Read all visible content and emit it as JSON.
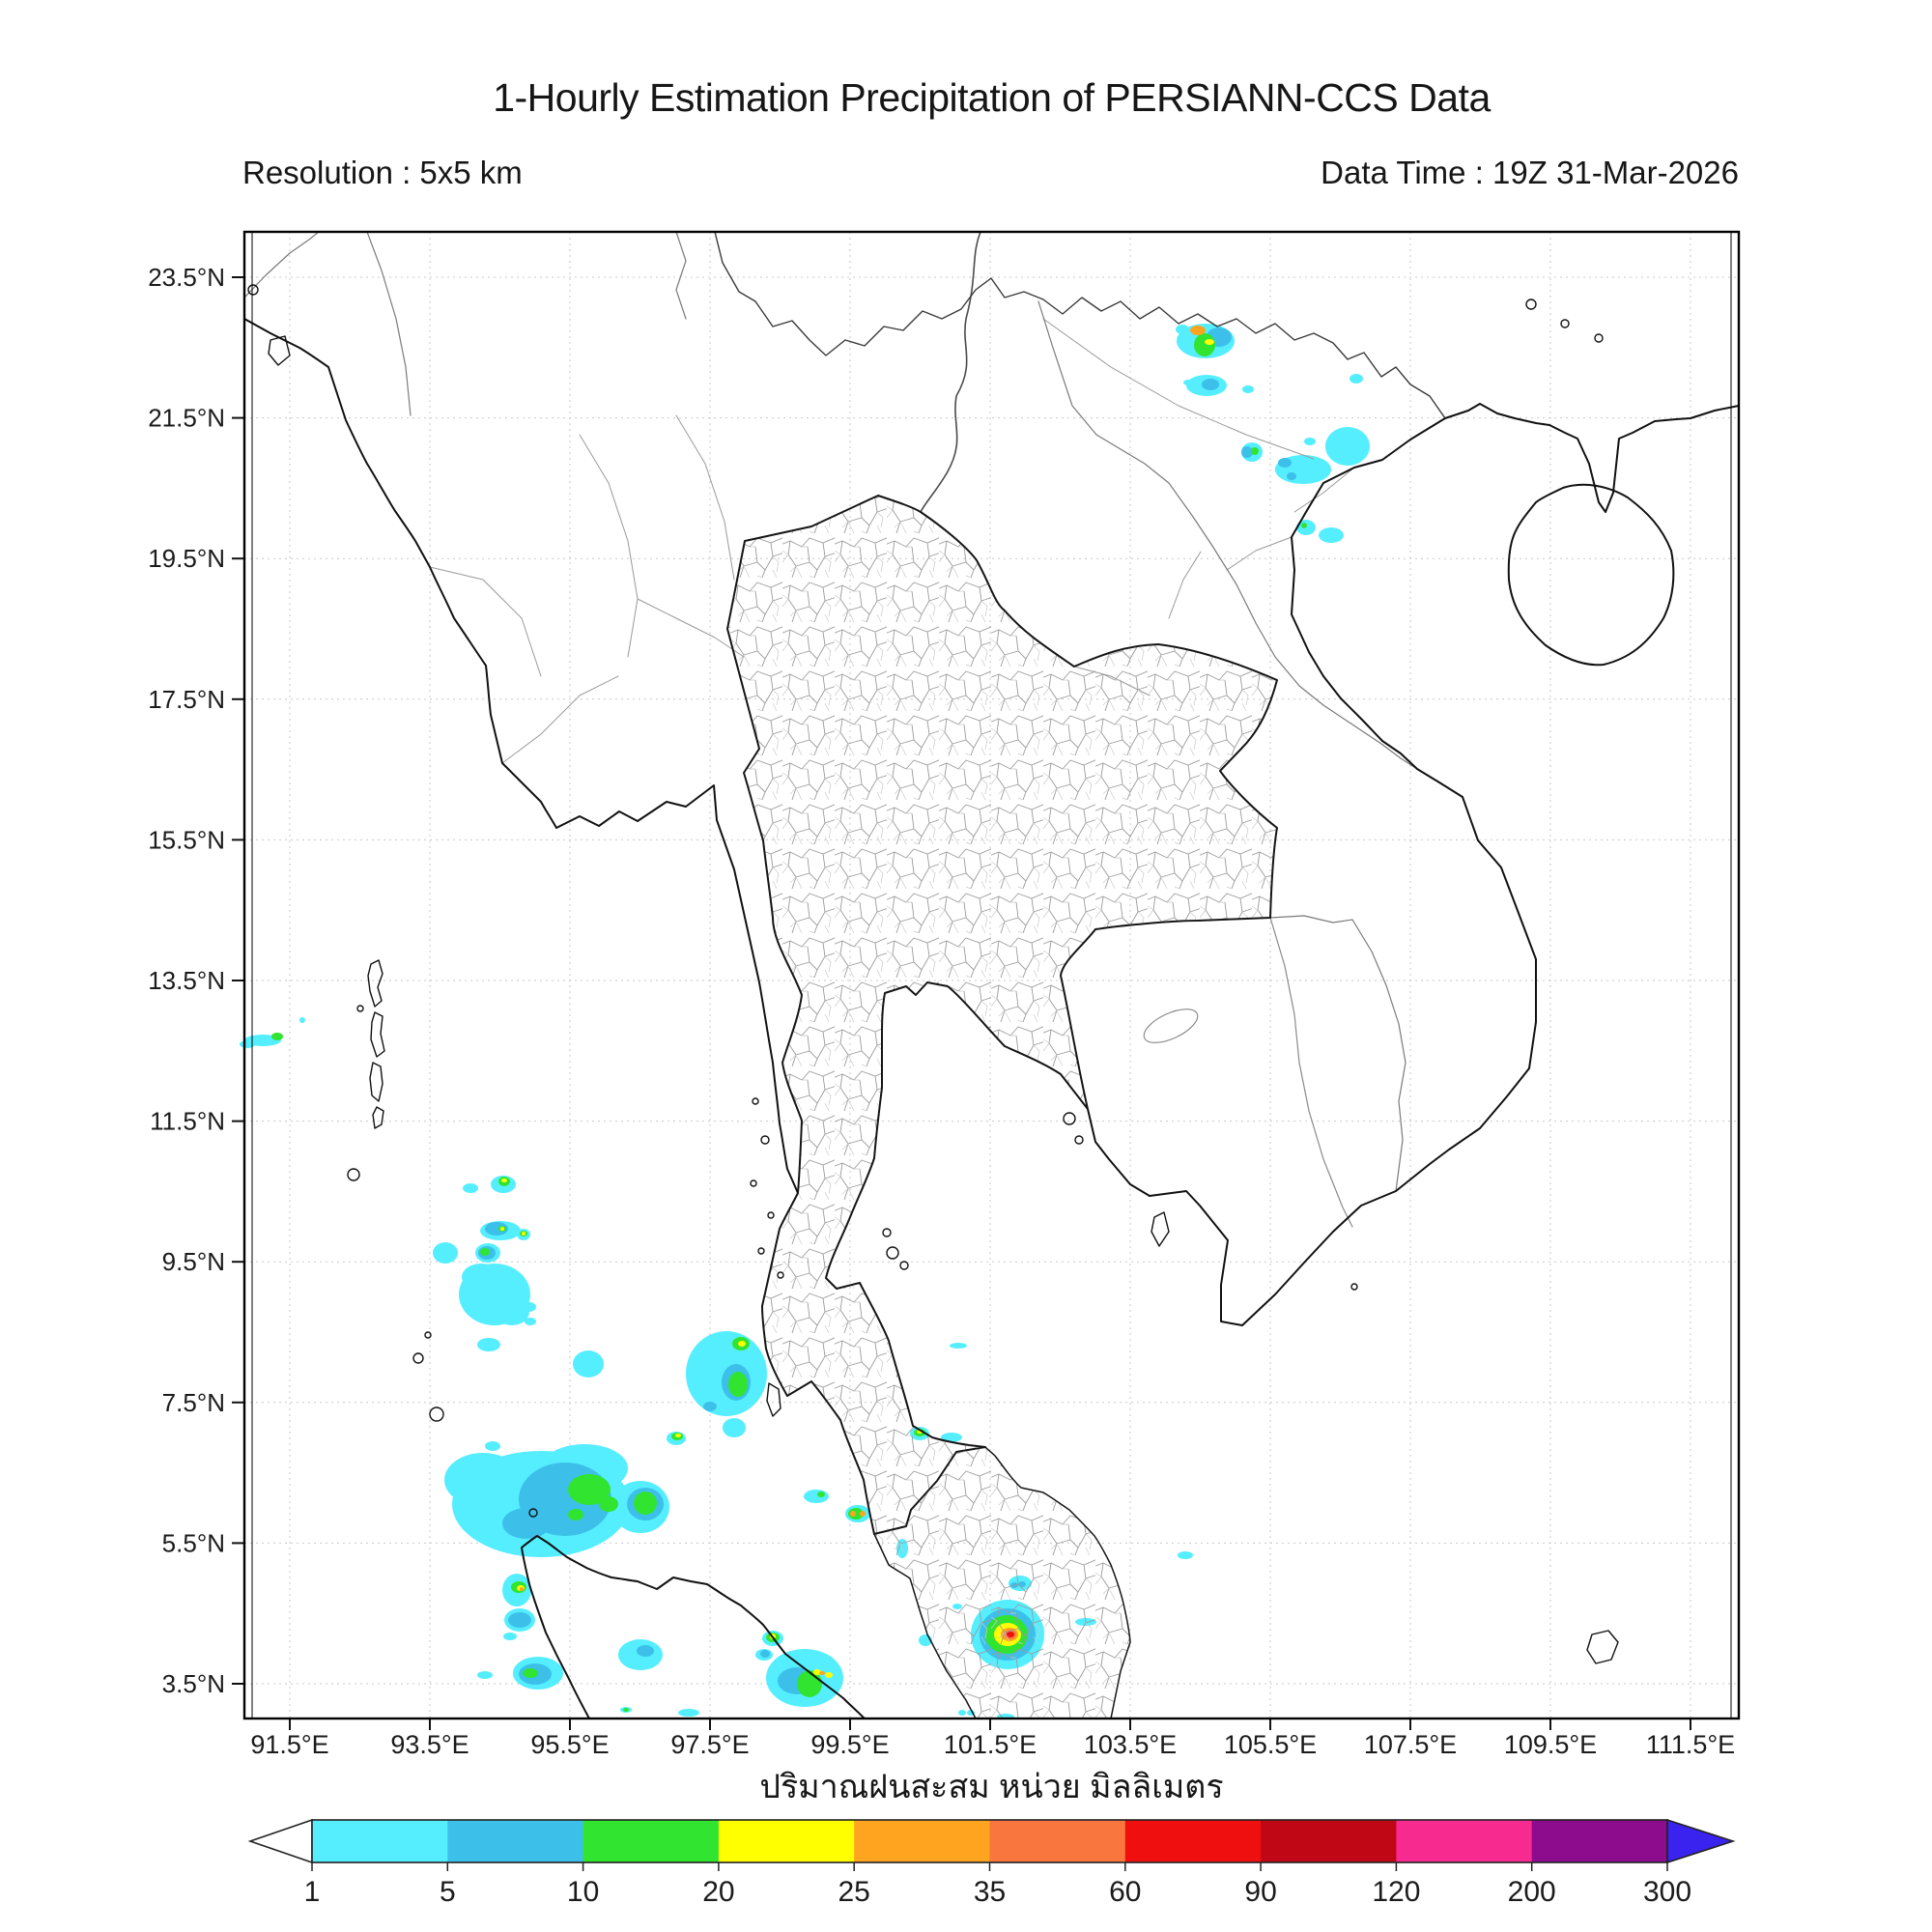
{
  "title": "1-Hourly Estimation Precipitation of PERSIANN-CCS Data",
  "subtitle_left": "Resolution : 5x5 km",
  "subtitle_right": "Data Time : 19Z 31-Mar-2026",
  "caption": "ปริมาณฝนสะสม หน่วย มิลลิเมตร",
  "map": {
    "lat_tick_labels": [
      "23.5°N",
      "21.5°N",
      "19.5°N",
      "17.5°N",
      "15.5°N",
      "13.5°N",
      "11.5°N",
      "9.5°N",
      "7.5°N",
      "5.5°N",
      "3.5°N"
    ],
    "lon_tick_labels": [
      "91.5°E",
      "93.5°E",
      "95.5°E",
      "97.5°E",
      "99.5°E",
      "101.5°E",
      "103.5°E",
      "105.5°E",
      "107.5°E",
      "109.5°E",
      "111.5°E"
    ]
  },
  "chart_data": {
    "type": "heatmap",
    "title": "1-Hourly Estimation Precipitation of PERSIANN-CCS Data",
    "resolution": "5x5 km",
    "data_time": "19Z 31-Mar-2026",
    "unit": "mm",
    "legend_label_thai": "ปริมาณฝนสะสม หน่วย มิลลิเมตร",
    "lon_domain_deg_e": [
      91.5,
      111.5
    ],
    "lat_domain_deg_n": [
      3.5,
      23.5
    ],
    "grid": "dotted 2-degree graticule",
    "scale": {
      "levels": [
        1,
        5,
        10,
        20,
        25,
        35,
        60,
        90,
        120,
        200,
        300
      ],
      "segment_colors": [
        "#55eeff",
        "#3cc0ea",
        "#30e430",
        "#ffff00",
        "#ffa41e",
        "#f9773f",
        "#ef0f0f",
        "#bf0716",
        "#f72a90",
        "#8d0b8d"
      ],
      "underflow_color": "#ffffff",
      "overflow_color": "#3b23ef"
    },
    "precip_cells": [
      [
        1248,
        353,
        30,
        18,
        1
      ],
      [
        1224,
        341,
        7,
        5,
        1
      ],
      [
        1262,
        349,
        13,
        10,
        5
      ],
      [
        1247,
        357,
        11,
        12,
        10
      ],
      [
        1252,
        354,
        5,
        3,
        20
      ],
      [
        1240,
        342,
        8,
        5,
        25
      ],
      [
        1240,
        342,
        4,
        2,
        20
      ],
      [
        1249,
        399,
        21,
        11,
        1
      ],
      [
        1230,
        396,
        5,
        3,
        1
      ],
      [
        1253,
        398,
        9,
        6,
        5
      ],
      [
        1292,
        403,
        6,
        4,
        1
      ],
      [
        1296,
        468,
        11,
        10,
        1
      ],
      [
        1291,
        468,
        6,
        6,
        5
      ],
      [
        1299,
        467,
        4,
        4,
        10
      ],
      [
        1395,
        462,
        23,
        20,
        1
      ],
      [
        1356,
        457,
        6,
        4,
        1
      ],
      [
        1404,
        392,
        7,
        5,
        1
      ],
      [
        1349,
        486,
        29,
        15,
        1
      ],
      [
        1330,
        479,
        7,
        5,
        5
      ],
      [
        1337,
        493,
        5,
        4,
        5
      ],
      [
        1352,
        546,
        10,
        8,
        1
      ],
      [
        1350,
        544,
        3,
        3,
        10
      ],
      [
        1378,
        554,
        13,
        8,
        1
      ],
      [
        272,
        1077,
        19,
        6,
        1
      ],
      [
        256,
        1081,
        8,
        4,
        1
      ],
      [
        287,
        1073,
        6,
        4,
        10
      ],
      [
        313,
        1056,
        3,
        3,
        1
      ],
      [
        521,
        1226,
        13,
        9,
        1
      ],
      [
        522,
        1223,
        6,
        5,
        10
      ],
      [
        522,
        1222,
        3,
        2,
        20
      ],
      [
        487,
        1230,
        8,
        5,
        1
      ],
      [
        518,
        1274,
        21,
        10,
        1
      ],
      [
        514,
        1272,
        12,
        7,
        5
      ],
      [
        520,
        1272,
        4,
        3,
        10
      ],
      [
        520,
        1272,
        2,
        2,
        20
      ],
      [
        542,
        1278,
        7,
        6,
        1
      ],
      [
        542,
        1277,
        4,
        3,
        10
      ],
      [
        542,
        1277,
        2,
        2,
        20
      ],
      [
        461,
        1297,
        13,
        11,
        1
      ],
      [
        505,
        1297,
        13,
        10,
        1
      ],
      [
        504,
        1297,
        9,
        7,
        5
      ],
      [
        502,
        1296,
        5,
        4,
        10
      ],
      [
        512,
        1340,
        37,
        32,
        1
      ],
      [
        498,
        1322,
        20,
        14,
        1
      ],
      [
        530,
        1358,
        18,
        14,
        1
      ],
      [
        548,
        1353,
        7,
        5,
        1
      ],
      [
        549,
        1368,
        6,
        4,
        1
      ],
      [
        506,
        1392,
        12,
        7,
        1
      ],
      [
        609,
        1412,
        16,
        14,
        1
      ],
      [
        752,
        1422,
        42,
        44,
        1
      ],
      [
        762,
        1431,
        15,
        19,
        5
      ],
      [
        764,
        1433,
        10,
        13,
        10
      ],
      [
        767,
        1391,
        9,
        7,
        10
      ],
      [
        768,
        1391,
        4,
        3,
        20
      ],
      [
        735,
        1456,
        7,
        5,
        5
      ],
      [
        760,
        1478,
        12,
        10,
        1
      ],
      [
        992,
        1393,
        9,
        3,
        1
      ],
      [
        952,
        1484,
        10,
        7,
        1
      ],
      [
        952,
        1483,
        6,
        4,
        10
      ],
      [
        952,
        1482,
        3,
        2,
        20
      ],
      [
        985,
        1488,
        11,
        5,
        1
      ],
      [
        1227,
        1610,
        8,
        4,
        1
      ],
      [
        1056,
        1639,
        12,
        8,
        1
      ],
      [
        1050,
        1641,
        4,
        3,
        5
      ],
      [
        1058,
        1640,
        4,
        3,
        5
      ],
      [
        1124,
        1679,
        11,
        4,
        1
      ],
      [
        934,
        1603,
        6,
        10,
        1
      ],
      [
        996,
        1773,
        4,
        3,
        1
      ],
      [
        1005,
        1773,
        4,
        3,
        1
      ],
      [
        1041,
        1777,
        9,
        3,
        1
      ],
      [
        958,
        1698,
        7,
        6,
        1
      ],
      [
        991,
        1663,
        5,
        3,
        1
      ],
      [
        1043,
        1692,
        38,
        36,
        1
      ],
      [
        1043,
        1692,
        29,
        27,
        5
      ],
      [
        1042,
        1692,
        22,
        20,
        10
      ],
      [
        1043,
        1692,
        14,
        12,
        20
      ],
      [
        1045,
        1692,
        9,
        7,
        25
      ],
      [
        1046,
        1692,
        6,
        5,
        35
      ],
      [
        1046,
        1692,
        4,
        3,
        60
      ],
      [
        560,
        1557,
        92,
        55,
        1
      ],
      [
        500,
        1532,
        40,
        28,
        1
      ],
      [
        605,
        1520,
        45,
        25,
        1
      ],
      [
        585,
        1552,
        48,
        38,
        5
      ],
      [
        545,
        1577,
        25,
        16,
        5
      ],
      [
        610,
        1542,
        22,
        16,
        10
      ],
      [
        630,
        1557,
        10,
        8,
        10
      ],
      [
        596,
        1568,
        8,
        6,
        10
      ],
      [
        663,
        1560,
        30,
        27,
        1
      ],
      [
        668,
        1557,
        19,
        17,
        5
      ],
      [
        668,
        1556,
        12,
        12,
        10
      ],
      [
        700,
        1489,
        10,
        7,
        1
      ],
      [
        701,
        1487,
        6,
        4,
        10
      ],
      [
        702,
        1486,
        3,
        2,
        20
      ],
      [
        510,
        1497,
        8,
        5,
        1
      ],
      [
        845,
        1549,
        13,
        7,
        1
      ],
      [
        850,
        1547,
        4,
        3,
        10
      ],
      [
        888,
        1567,
        13,
        9,
        1
      ],
      [
        886,
        1567,
        8,
        6,
        10
      ],
      [
        883,
        1567,
        3,
        3,
        25
      ],
      [
        893,
        1567,
        3,
        3,
        25
      ],
      [
        535,
        1646,
        15,
        17,
        1
      ],
      [
        537,
        1643,
        8,
        6,
        10
      ],
      [
        539,
        1644,
        4,
        3,
        20
      ],
      [
        540,
        1645,
        2,
        2,
        25
      ],
      [
        538,
        1677,
        16,
        12,
        1
      ],
      [
        538,
        1677,
        12,
        8,
        5
      ],
      [
        528,
        1694,
        7,
        4,
        1
      ],
      [
        557,
        1732,
        26,
        17,
        1
      ],
      [
        554,
        1733,
        17,
        11,
        5
      ],
      [
        549,
        1732,
        8,
        5,
        10
      ],
      [
        502,
        1734,
        8,
        4,
        1
      ],
      [
        663,
        1713,
        23,
        16,
        1
      ],
      [
        668,
        1709,
        9,
        6,
        5
      ],
      [
        833,
        1737,
        40,
        30,
        1
      ],
      [
        825,
        1740,
        20,
        14,
        5
      ],
      [
        838,
        1743,
        13,
        14,
        10
      ],
      [
        846,
        1731,
        4,
        3,
        20
      ],
      [
        858,
        1734,
        4,
        3,
        20
      ],
      [
        851,
        1732,
        3,
        2,
        25
      ],
      [
        800,
        1696,
        11,
        8,
        1
      ],
      [
        800,
        1695,
        7,
        5,
        10
      ],
      [
        800,
        1694,
        3,
        3,
        20
      ],
      [
        791,
        1713,
        9,
        6,
        1
      ],
      [
        792,
        1712,
        5,
        4,
        5
      ],
      [
        713,
        1773,
        11,
        4,
        1
      ],
      [
        648,
        1770,
        6,
        3,
        1
      ],
      [
        648,
        1770,
        3,
        2,
        10
      ]
    ]
  }
}
